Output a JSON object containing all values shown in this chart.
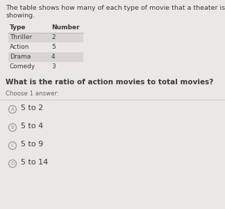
{
  "line1": "The table shows how many of each type of movie that a theater is",
  "line2": "showing.",
  "table_header": [
    "Type",
    "Number"
  ],
  "table_rows": [
    [
      "Thriller",
      "2"
    ],
    [
      "Action",
      "5"
    ],
    [
      "Drama",
      "4"
    ],
    [
      "Comedy",
      "3"
    ]
  ],
  "row_bg_colors": [
    "#d8d5d2",
    "#eae7e4",
    "#d8d5d2",
    "#eae7e4"
  ],
  "question": "What is the ratio of action movies to total movies?",
  "choose_label": "Choose 1 answer:",
  "choices": [
    [
      "A",
      "5 to 2"
    ],
    [
      "B",
      "5 to 4"
    ],
    [
      "C",
      "5 to 9"
    ],
    [
      "D",
      "5 to 14"
    ]
  ],
  "bg_color": "#eae8e5",
  "text_color": "#3a3a3a",
  "header_color": "#3a3a3a",
  "divider_color": "#c0bebb",
  "circle_color": "#999999",
  "choice_line_color": "#c8c5c2"
}
